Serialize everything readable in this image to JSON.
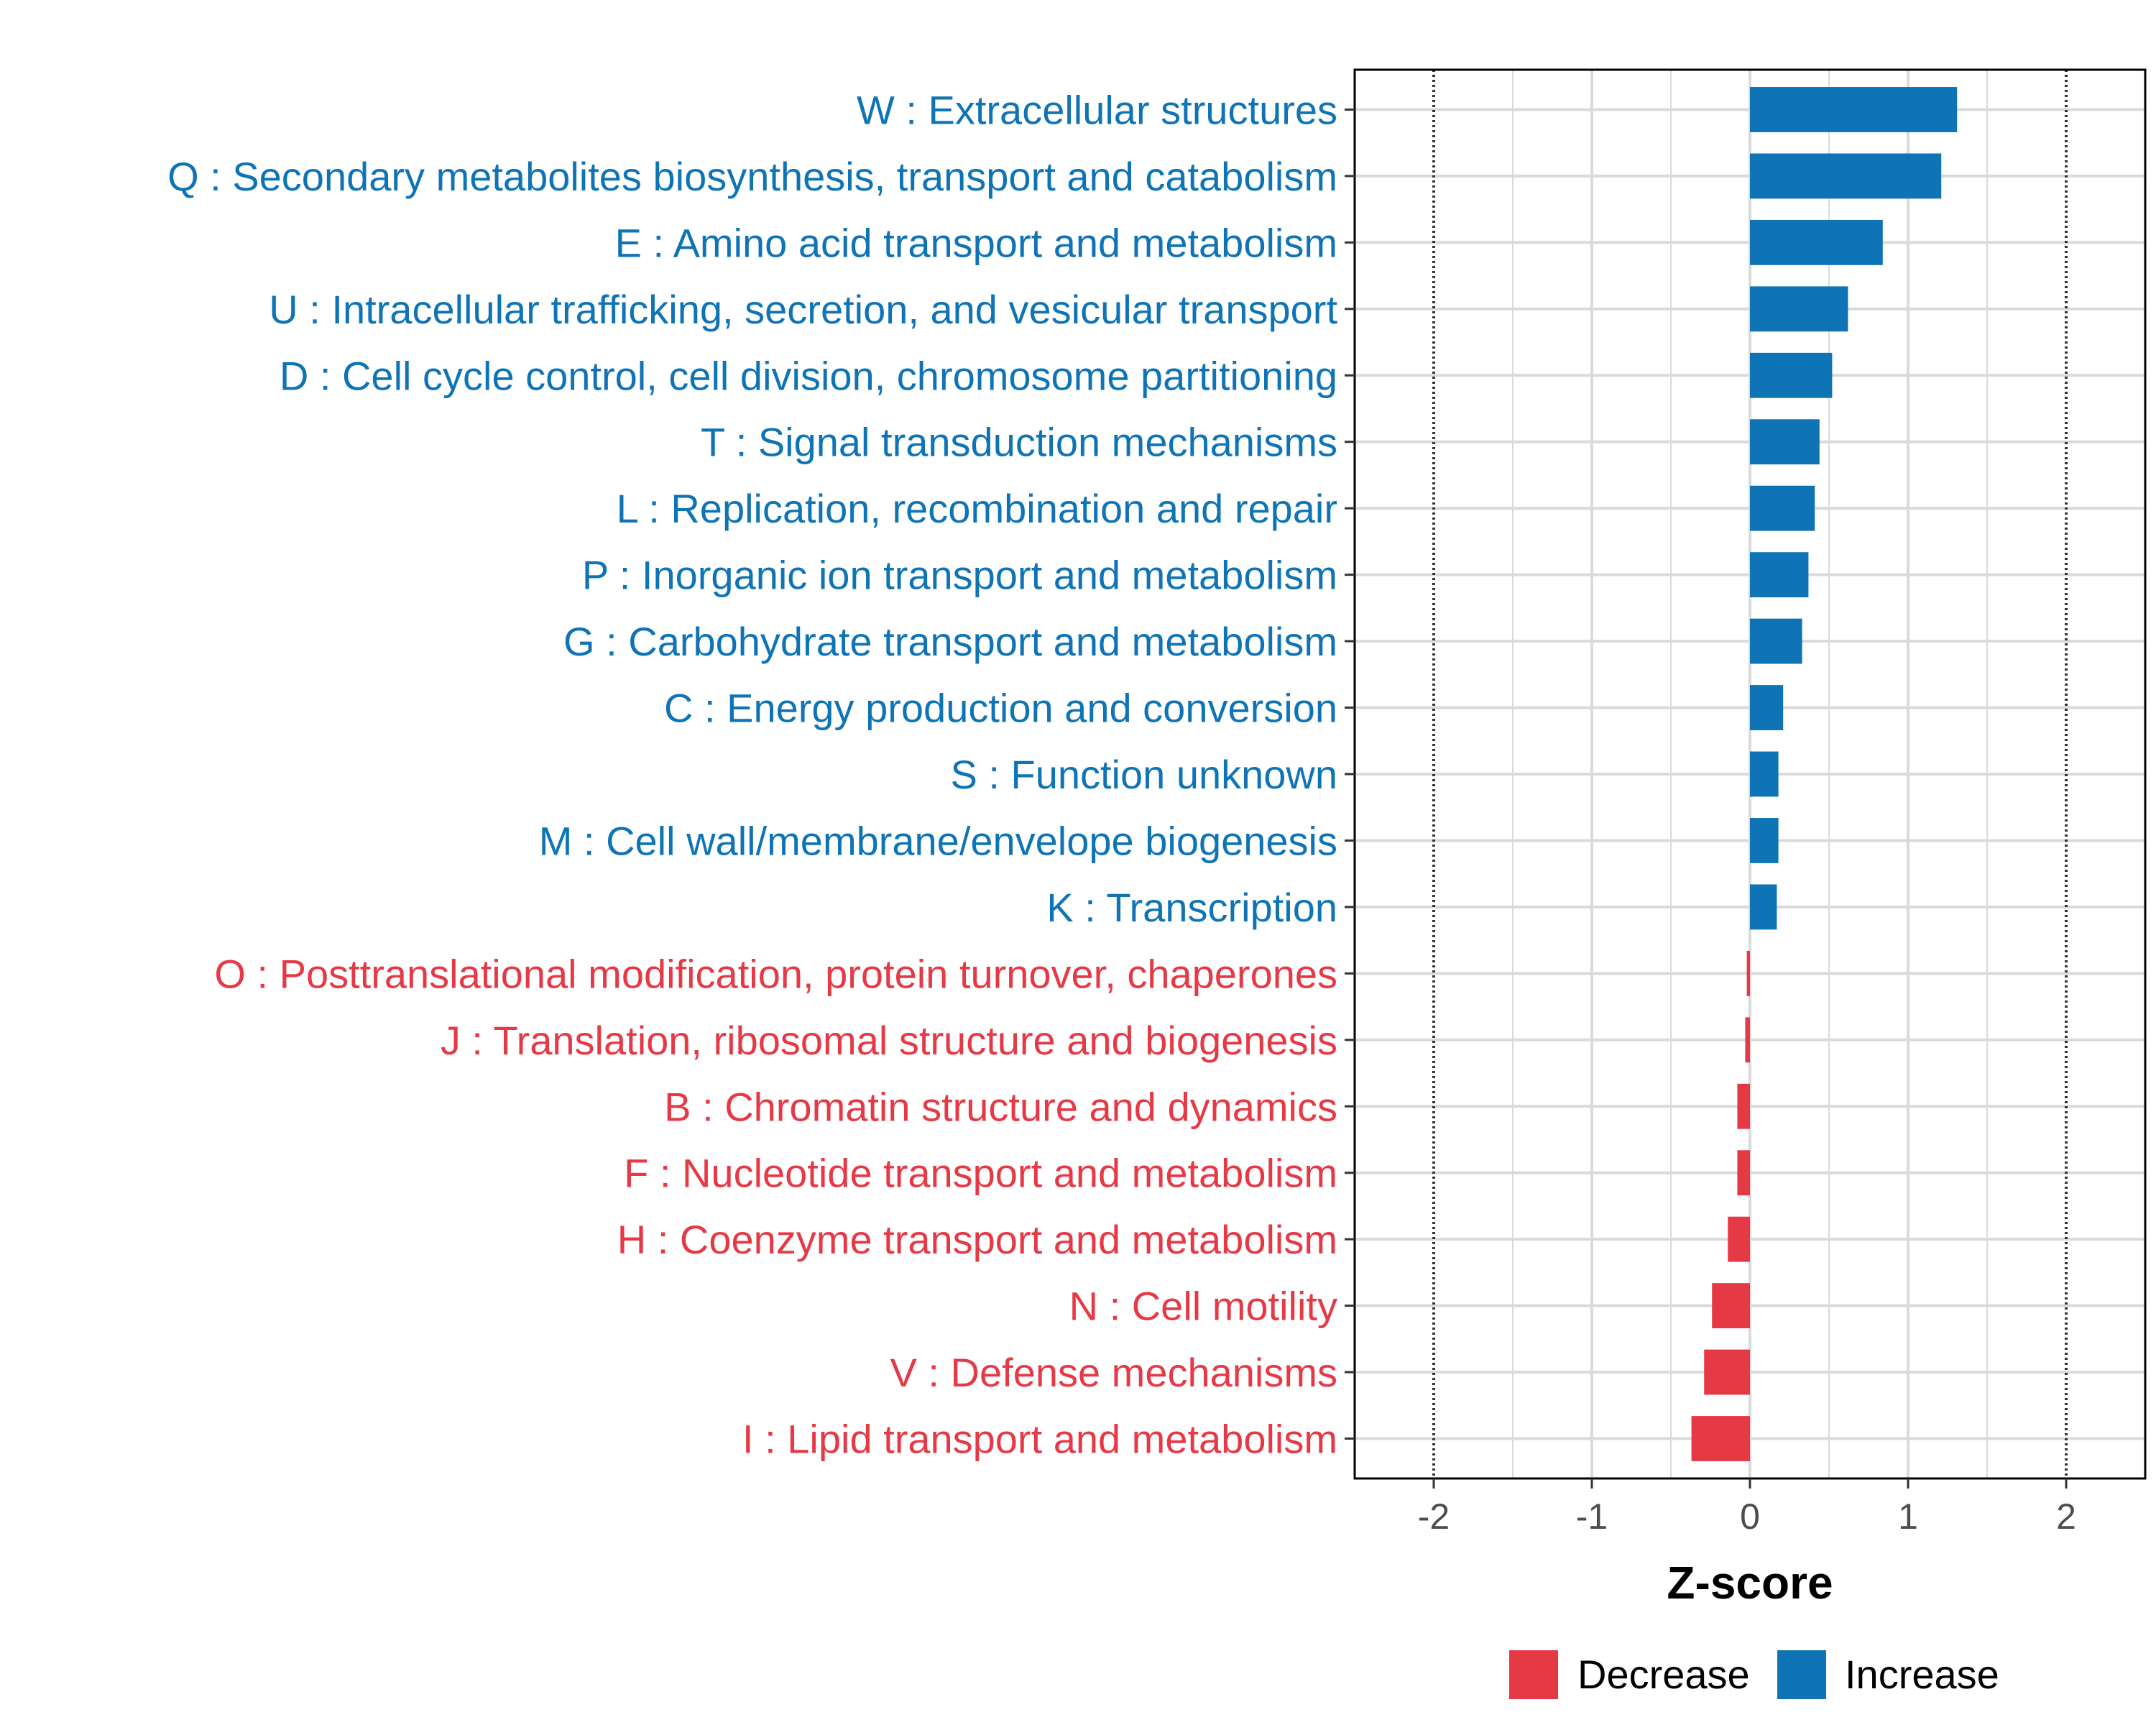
{
  "chart_data": {
    "type": "bar",
    "orientation": "horizontal",
    "xlabel": "Z-score",
    "xlim": [
      -2.5,
      2.5
    ],
    "xticks": [
      -2,
      -1,
      0,
      1,
      2
    ],
    "xtick_labels": [
      "-2",
      "-1",
      "0",
      "1",
      "2"
    ],
    "reference_lines": [
      -2,
      2
    ],
    "grid": true,
    "legend_position": "bottom",
    "legend": [
      {
        "key": "decrease",
        "label": "Decrease",
        "color": "#e63946"
      },
      {
        "key": "increase",
        "label": "Increase",
        "color": "#0f74b5"
      }
    ],
    "categories": [
      {
        "label": "W : Extracellular structures",
        "value": 1.31,
        "direction": "increase"
      },
      {
        "label": "Q : Secondary metabolites biosynthesis, transport and catabolism",
        "value": 1.21,
        "direction": "increase"
      },
      {
        "label": "E : Amino acid transport and metabolism",
        "value": 0.84,
        "direction": "increase"
      },
      {
        "label": "U : Intracellular trafficking, secretion, and vesicular transport",
        "value": 0.62,
        "direction": "increase"
      },
      {
        "label": "D : Cell cycle control, cell division, chromosome partitioning",
        "value": 0.52,
        "direction": "increase"
      },
      {
        "label": "T : Signal transduction mechanisms",
        "value": 0.44,
        "direction": "increase"
      },
      {
        "label": "L : Replication, recombination and repair",
        "value": 0.41,
        "direction": "increase"
      },
      {
        "label": "P : Inorganic ion transport and metabolism",
        "value": 0.37,
        "direction": "increase"
      },
      {
        "label": "G : Carbohydrate transport and metabolism",
        "value": 0.33,
        "direction": "increase"
      },
      {
        "label": "C : Energy production and conversion",
        "value": 0.21,
        "direction": "increase"
      },
      {
        "label": "S : Function unknown",
        "value": 0.18,
        "direction": "increase"
      },
      {
        "label": "M : Cell wall/membrane/envelope biogenesis",
        "value": 0.18,
        "direction": "increase"
      },
      {
        "label": "K : Transcription",
        "value": 0.17,
        "direction": "increase"
      },
      {
        "label": "O : Posttranslational modification, protein turnover, chaperones",
        "value": -0.02,
        "direction": "decrease"
      },
      {
        "label": "J : Translation, ribosomal structure and biogenesis",
        "value": -0.03,
        "direction": "decrease"
      },
      {
        "label": "B : Chromatin structure and dynamics",
        "value": -0.08,
        "direction": "decrease"
      },
      {
        "label": "F : Nucleotide transport and metabolism",
        "value": -0.08,
        "direction": "decrease"
      },
      {
        "label": "H : Coenzyme transport and metabolism",
        "value": -0.14,
        "direction": "decrease"
      },
      {
        "label": "N : Cell motility",
        "value": -0.24,
        "direction": "decrease"
      },
      {
        "label": "V : Defense mechanisms",
        "value": -0.29,
        "direction": "decrease"
      },
      {
        "label": "I : Lipid transport and metabolism",
        "value": -0.37,
        "direction": "decrease"
      }
    ]
  }
}
